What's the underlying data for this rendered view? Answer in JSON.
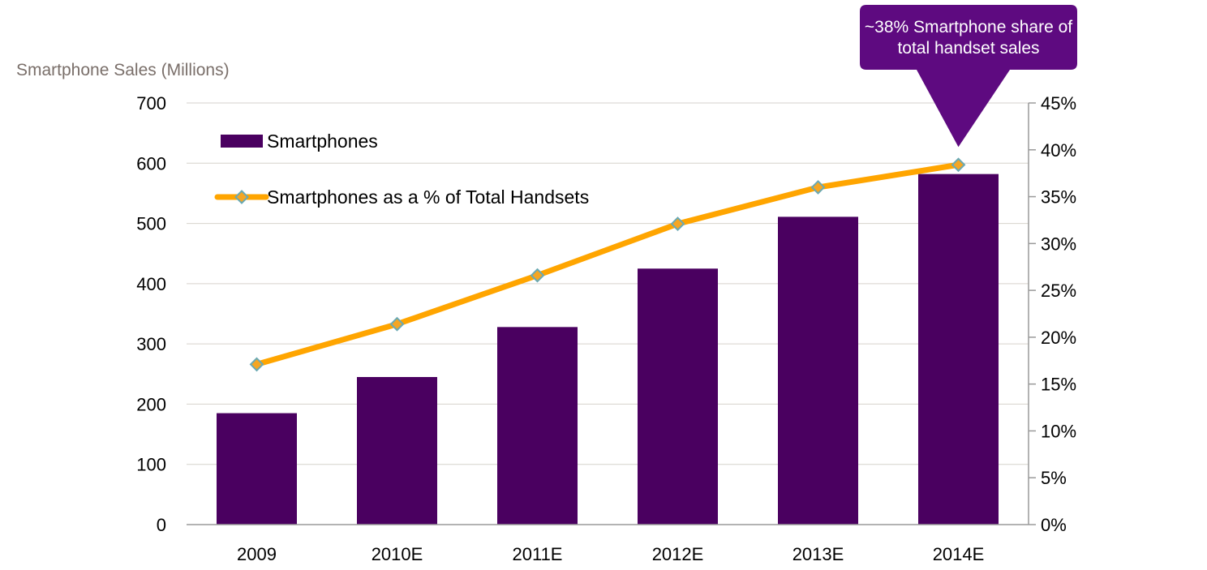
{
  "chart_data": {
    "type": "bar",
    "ylabel": "Smartphone Sales (Millions)",
    "categories": [
      "2009",
      "2010E",
      "2011E",
      "2012E",
      "2013E",
      "2014E"
    ],
    "series": [
      {
        "name": "Smartphones",
        "type": "bar",
        "axis": "left",
        "values": [
          185,
          245,
          328,
          425,
          511,
          582
        ]
      },
      {
        "name": "Smartphones as a % of Total Handsets",
        "type": "line",
        "axis": "right",
        "values": [
          17.1,
          21.4,
          26.6,
          32.1,
          36.0,
          38.4
        ]
      }
    ],
    "ylim": [
      0,
      700
    ],
    "yticks": [
      "0",
      "100",
      "200",
      "300",
      "400",
      "500",
      "600",
      "700"
    ],
    "y2lim": [
      0,
      45
    ],
    "y2ticks": [
      "0%",
      "5%",
      "10%",
      "15%",
      "20%",
      "25%",
      "30%",
      "35%",
      "40%",
      "45%"
    ],
    "grid": true,
    "legend": "top-left",
    "annotation": {
      "lines": [
        "~38% Smartphone share of",
        "total handset sales"
      ],
      "target_category": "2014E"
    },
    "colors": {
      "bar": "#4a0060",
      "line": "#ffa500",
      "marker_fill": "#f5a623",
      "marker_stroke": "#6aa9b3",
      "callout": "#5e0a80"
    }
  }
}
